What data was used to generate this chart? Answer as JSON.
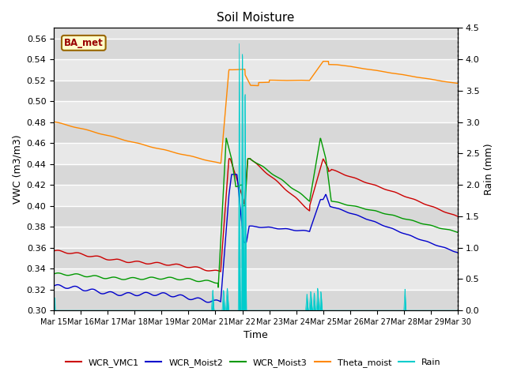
{
  "title": "Soil Moisture",
  "xlabel": "Time",
  "ylabel_left": "VWC (m3/m3)",
  "ylabel_right": "Rain (mm)",
  "ylim_left": [
    0.3,
    0.57
  ],
  "ylim_right": [
    0.0,
    4.5
  ],
  "yticks_left": [
    0.3,
    0.32,
    0.34,
    0.36,
    0.38,
    0.4,
    0.42,
    0.44,
    0.46,
    0.48,
    0.5,
    0.52,
    0.54,
    0.56
  ],
  "yticks_right": [
    0.0,
    0.5,
    1.0,
    1.5,
    2.0,
    2.5,
    3.0,
    3.5,
    4.0,
    4.5
  ],
  "xtick_labels": [
    "Mar 15",
    "Mar 16",
    "Mar 17",
    "Mar 18",
    "Mar 19",
    "Mar 20",
    "Mar 21",
    "Mar 22",
    "Mar 23",
    "Mar 24",
    "Mar 25",
    "Mar 26",
    "Mar 27",
    "Mar 28",
    "Mar 29",
    "Mar 30"
  ],
  "legend_labels": [
    "WCR_VMC1",
    "WCR_Moist2",
    "WCR_Moist3",
    "Theta_moist",
    "Rain"
  ],
  "legend_colors": [
    "#cc0000",
    "#0000cc",
    "#009900",
    "#ff8800",
    "#00cccc"
  ],
  "background_color": "#e8e8e8",
  "annotation_text": "BA_met",
  "annotation_color": "#990000",
  "annotation_bg": "#ffffcc",
  "annotation_border": "#996600"
}
